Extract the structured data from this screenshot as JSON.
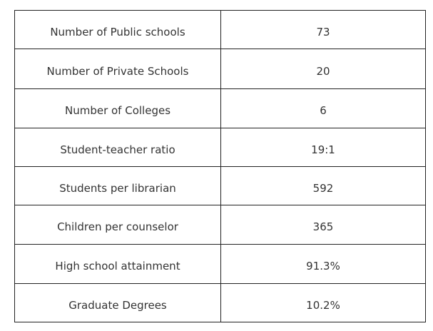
{
  "rows": [
    {
      "label": "Number of Public schools",
      "value": "73"
    },
    {
      "label": "Number of Private Schools",
      "value": "20"
    },
    {
      "label": "Number of Colleges",
      "value": "6"
    },
    {
      "label": "Student-teacher ratio",
      "value": "19:1"
    },
    {
      "label": "Students per librarian",
      "value": "592"
    },
    {
      "label": "Children per counselor",
      "value": "365"
    },
    {
      "label": "High school attainment",
      "value": "91.3%"
    },
    {
      "label": "Graduate Degrees",
      "value": "10.2%"
    }
  ]
}
